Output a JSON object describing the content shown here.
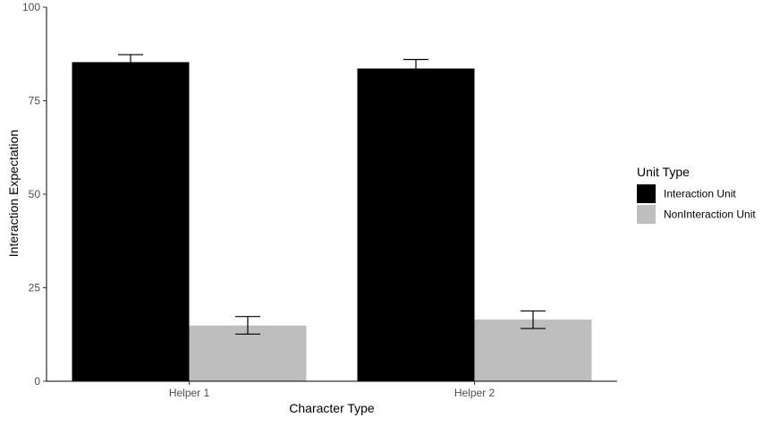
{
  "chart_data": {
    "type": "bar",
    "categories": [
      "Helper 1",
      "Helper 2"
    ],
    "series": [
      {
        "name": "Interaction Unit",
        "color": "#000000",
        "values": [
          85.3,
          83.6
        ],
        "error_low": [
          83.2,
          81.2
        ],
        "error_high": [
          87.3,
          86.0
        ]
      },
      {
        "name": "NonInteraction Unit",
        "color": "#bebebe",
        "values": [
          14.9,
          16.5
        ],
        "error_low": [
          12.6,
          14.1
        ],
        "error_high": [
          17.3,
          18.8
        ]
      }
    ],
    "xlabel": "Character Type",
    "ylabel": "Interaction Expectation",
    "ylim": [
      0,
      100
    ],
    "yticks": [
      0,
      25,
      50,
      75,
      100
    ],
    "legend": {
      "title": "Unit Type",
      "position": "right"
    },
    "grid": false
  }
}
